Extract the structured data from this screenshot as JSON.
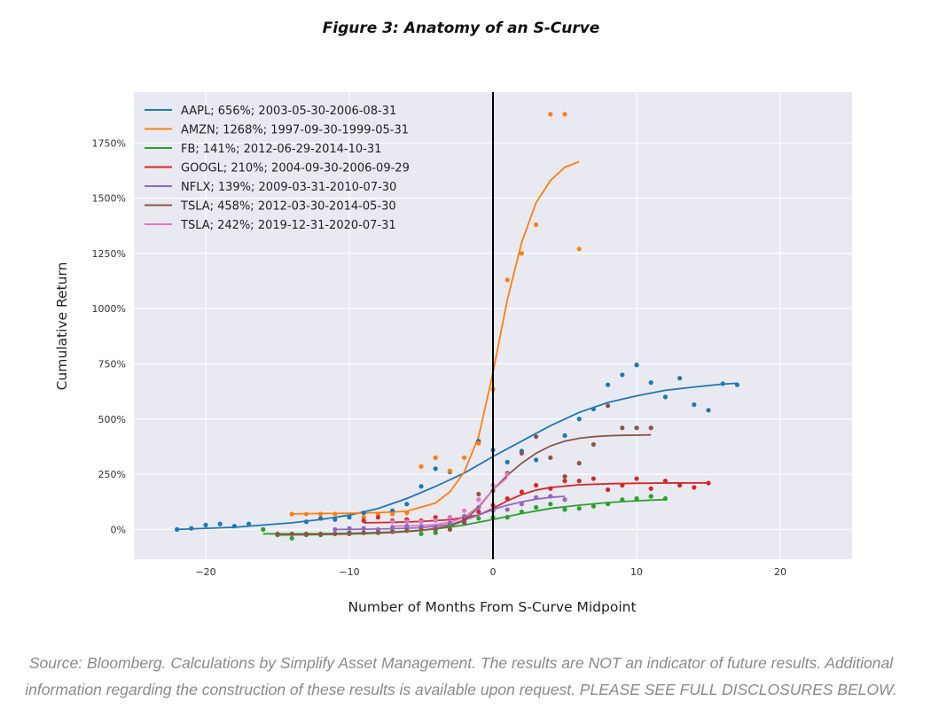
{
  "figure_title": "Figure 3: Anatomy of an S-Curve",
  "source_note": "Source: Bloomberg.  Calculations by Simplify Asset Management.  The results are NOT an indicator of future results.  Additional information regarding the construction of these results is available upon request.  PLEASE SEE FULL DISCLOSURES BELOW.",
  "chart_data": {
    "type": "scatter",
    "title": "",
    "xlabel": "Number of Months From S-Curve Midpoint",
    "ylabel": "Cumulative Return",
    "xlim": [
      -25,
      25
    ],
    "ylim": [
      -135,
      1980
    ],
    "x_ticks": [
      -20,
      -10,
      0,
      10,
      20
    ],
    "x_tick_labels": [
      "−20",
      "−10",
      "0",
      "10",
      "20"
    ],
    "y_ticks": [
      0,
      250,
      500,
      750,
      1000,
      1250,
      1500,
      1750
    ],
    "y_tick_labels": [
      "0%",
      "250%",
      "500%",
      "750%",
      "1000%",
      "1250%",
      "1500%",
      "1750%"
    ],
    "grid": true,
    "legend_position": "top-left",
    "vertical_line_x": 0,
    "series": [
      {
        "name": "AAPL; 656%; 2003-05-30-2006-08-31",
        "color": "#1f77b4",
        "points": [
          [
            -22,
            0
          ],
          [
            -21,
            5
          ],
          [
            -20,
            20
          ],
          [
            -19,
            25
          ],
          [
            -18,
            15
          ],
          [
            -17,
            25
          ],
          [
            -13,
            35
          ],
          [
            -12,
            50
          ],
          [
            -11,
            45
          ],
          [
            -10,
            55
          ],
          [
            -9,
            75
          ],
          [
            -7,
            85
          ],
          [
            -6,
            115
          ],
          [
            -5,
            195
          ],
          [
            -4,
            275
          ],
          [
            -3,
            260
          ],
          [
            -1,
            400
          ],
          [
            0,
            360
          ],
          [
            1,
            305
          ],
          [
            2,
            355
          ],
          [
            3,
            315
          ],
          [
            5,
            425
          ],
          [
            6,
            500
          ],
          [
            7,
            545
          ],
          [
            8,
            655
          ],
          [
            9,
            700
          ],
          [
            10,
            745
          ],
          [
            11,
            665
          ],
          [
            12,
            600
          ],
          [
            13,
            685
          ],
          [
            14,
            565
          ],
          [
            15,
            540
          ],
          [
            16,
            660
          ],
          [
            17,
            655
          ]
        ],
        "curve": [
          [
            -22,
            0
          ],
          [
            -20,
            5
          ],
          [
            -18,
            10
          ],
          [
            -16,
            20
          ],
          [
            -14,
            30
          ],
          [
            -12,
            45
          ],
          [
            -10,
            65
          ],
          [
            -8,
            95
          ],
          [
            -6,
            140
          ],
          [
            -4,
            195
          ],
          [
            -2,
            255
          ],
          [
            0,
            330
          ],
          [
            2,
            400
          ],
          [
            4,
            470
          ],
          [
            6,
            530
          ],
          [
            8,
            575
          ],
          [
            10,
            605
          ],
          [
            12,
            630
          ],
          [
            14,
            645
          ],
          [
            16,
            658
          ],
          [
            17,
            662
          ]
        ]
      },
      {
        "name": "AMZN; 1268%; 1997-09-30-1999-05-31",
        "color": "#ff7f0e",
        "points": [
          [
            -14,
            70
          ],
          [
            -13,
            70
          ],
          [
            -12,
            70
          ],
          [
            -11,
            70
          ],
          [
            -9,
            55
          ],
          [
            -8,
            70
          ],
          [
            -7,
            70
          ],
          [
            -6,
            75
          ],
          [
            -5,
            285
          ],
          [
            -4,
            325
          ],
          [
            -3,
            265
          ],
          [
            -2,
            325
          ],
          [
            -1,
            390
          ],
          [
            0,
            635
          ],
          [
            1,
            1130
          ],
          [
            2,
            1250
          ],
          [
            3,
            1380
          ],
          [
            4,
            1880
          ],
          [
            5,
            1880
          ],
          [
            6,
            1270
          ]
        ],
        "curve": [
          [
            -14,
            70
          ],
          [
            -12,
            72
          ],
          [
            -10,
            73
          ],
          [
            -8,
            76
          ],
          [
            -6,
            82
          ],
          [
            -4,
            120
          ],
          [
            -3,
            170
          ],
          [
            -2,
            260
          ],
          [
            -1,
            420
          ],
          [
            0,
            710
          ],
          [
            1,
            1040
          ],
          [
            2,
            1300
          ],
          [
            3,
            1480
          ],
          [
            4,
            1580
          ],
          [
            5,
            1640
          ],
          [
            6,
            1665
          ]
        ]
      },
      {
        "name": "FB; 141%; 2012-06-29-2014-10-31",
        "color": "#2ca02c",
        "points": [
          [
            -16,
            0
          ],
          [
            -15,
            -25
          ],
          [
            -14,
            -40
          ],
          [
            -13,
            -25
          ],
          [
            -12,
            -25
          ],
          [
            -11,
            -20
          ],
          [
            -10,
            -15
          ],
          [
            -9,
            -15
          ],
          [
            -8,
            -10
          ],
          [
            -7,
            -10
          ],
          [
            -6,
            -5
          ],
          [
            -5,
            -20
          ],
          [
            -4,
            -15
          ],
          [
            -3,
            20
          ],
          [
            -2,
            40
          ],
          [
            -1,
            50
          ],
          [
            0,
            55
          ],
          [
            1,
            55
          ],
          [
            2,
            80
          ],
          [
            3,
            100
          ],
          [
            4,
            115
          ],
          [
            5,
            90
          ],
          [
            6,
            95
          ],
          [
            7,
            105
          ],
          [
            8,
            115
          ],
          [
            9,
            135
          ],
          [
            10,
            140
          ],
          [
            11,
            150
          ],
          [
            12,
            140
          ]
        ],
        "curve": [
          [
            -16,
            -20
          ],
          [
            -14,
            -20
          ],
          [
            -12,
            -19
          ],
          [
            -10,
            -17
          ],
          [
            -8,
            -14
          ],
          [
            -6,
            -8
          ],
          [
            -4,
            2
          ],
          [
            -2,
            20
          ],
          [
            0,
            45
          ],
          [
            2,
            72
          ],
          [
            4,
            95
          ],
          [
            6,
            110
          ],
          [
            8,
            122
          ],
          [
            10,
            130
          ],
          [
            12,
            135
          ]
        ]
      },
      {
        "name": "GOOGL; 210%; 2004-09-30-2006-09-29",
        "color": "#d62728",
        "points": [
          [
            -9,
            40
          ],
          [
            -8,
            55
          ],
          [
            -7,
            40
          ],
          [
            -6,
            45
          ],
          [
            -5,
            40
          ],
          [
            -4,
            55
          ],
          [
            -3,
            55
          ],
          [
            -2,
            50
          ],
          [
            -1,
            80
          ],
          [
            0,
            110
          ],
          [
            1,
            140
          ],
          [
            2,
            170
          ],
          [
            3,
            200
          ],
          [
            4,
            185
          ],
          [
            5,
            220
          ],
          [
            6,
            220
          ],
          [
            7,
            230
          ],
          [
            8,
            180
          ],
          [
            9,
            200
          ],
          [
            10,
            230
          ],
          [
            11,
            185
          ],
          [
            12,
            220
          ],
          [
            13,
            200
          ],
          [
            14,
            190
          ],
          [
            15,
            210
          ]
        ],
        "curve": [
          [
            -9,
            30
          ],
          [
            -7,
            32
          ],
          [
            -5,
            36
          ],
          [
            -3,
            44
          ],
          [
            -1,
            65
          ],
          [
            0,
            95
          ],
          [
            1,
            130
          ],
          [
            2,
            158
          ],
          [
            3,
            178
          ],
          [
            4,
            190
          ],
          [
            6,
            202
          ],
          [
            8,
            207
          ],
          [
            10,
            209
          ],
          [
            12,
            210
          ],
          [
            15,
            211
          ]
        ]
      },
      {
        "name": "NFLX; 139%; 2009-03-31-2010-07-30",
        "color": "#9467bd",
        "points": [
          [
            -11,
            0
          ],
          [
            -10,
            5
          ],
          [
            -9,
            5
          ],
          [
            -8,
            0
          ],
          [
            -7,
            10
          ],
          [
            -6,
            15
          ],
          [
            -5,
            15
          ],
          [
            -4,
            10
          ],
          [
            -3,
            30
          ],
          [
            -2,
            60
          ],
          [
            -1,
            100
          ],
          [
            0,
            85
          ],
          [
            1,
            90
          ],
          [
            2,
            115
          ],
          [
            3,
            145
          ],
          [
            4,
            150
          ],
          [
            5,
            135
          ]
        ],
        "curve": [
          [
            -11,
            0
          ],
          [
            -9,
            1
          ],
          [
            -7,
            3
          ],
          [
            -5,
            8
          ],
          [
            -3,
            22
          ],
          [
            -2,
            42
          ],
          [
            -1,
            65
          ],
          [
            0,
            90
          ],
          [
            1,
            110
          ],
          [
            2,
            125
          ],
          [
            3,
            137
          ],
          [
            4,
            145
          ],
          [
            5,
            150
          ]
        ]
      },
      {
        "name": "TSLA; 458%; 2012-03-30-2014-05-30",
        "color": "#8c564b",
        "points": [
          [
            -15,
            -20
          ],
          [
            -14,
            -20
          ],
          [
            -13,
            -20
          ],
          [
            -12,
            -20
          ],
          [
            -11,
            -20
          ],
          [
            -10,
            -20
          ],
          [
            -9,
            -15
          ],
          [
            -8,
            -15
          ],
          [
            -7,
            -10
          ],
          [
            -6,
            -5
          ],
          [
            -5,
            0
          ],
          [
            -4,
            0
          ],
          [
            -3,
            0
          ],
          [
            -2,
            30
          ],
          [
            -1,
            160
          ],
          [
            0,
            175
          ],
          [
            1,
            255
          ],
          [
            2,
            345
          ],
          [
            3,
            420
          ],
          [
            4,
            325
          ],
          [
            5,
            240
          ],
          [
            6,
            300
          ],
          [
            7,
            385
          ],
          [
            8,
            560
          ],
          [
            9,
            460
          ],
          [
            10,
            460
          ],
          [
            11,
            460
          ]
        ],
        "curve": [
          [
            -15,
            -25
          ],
          [
            -13,
            -24
          ],
          [
            -11,
            -22
          ],
          [
            -9,
            -19
          ],
          [
            -7,
            -14
          ],
          [
            -5,
            -5
          ],
          [
            -3,
            15
          ],
          [
            -2,
            40
          ],
          [
            -1,
            100
          ],
          [
            0,
            180
          ],
          [
            1,
            245
          ],
          [
            2,
            300
          ],
          [
            3,
            345
          ],
          [
            4,
            378
          ],
          [
            5,
            400
          ],
          [
            6,
            413
          ],
          [
            7,
            420
          ],
          [
            8,
            424
          ],
          [
            9,
            426
          ],
          [
            11,
            428
          ]
        ]
      },
      {
        "name": "TSLA; 242%; 2019-12-31-2020-07-31",
        "color": "#e377c2",
        "points": [
          [
            -7,
            35
          ],
          [
            -6,
            35
          ],
          [
            -5,
            35
          ],
          [
            -4,
            40
          ],
          [
            -3,
            55
          ],
          [
            -2,
            85
          ],
          [
            -1,
            135
          ],
          [
            0,
            200
          ],
          [
            1,
            250
          ]
        ],
        "curve": [
          [
            -7,
            15
          ],
          [
            -6,
            16
          ],
          [
            -5,
            18
          ],
          [
            -4,
            22
          ],
          [
            -3,
            32
          ],
          [
            -2,
            55
          ],
          [
            -1,
            105
          ],
          [
            0,
            180
          ],
          [
            1,
            235
          ]
        ]
      }
    ]
  }
}
